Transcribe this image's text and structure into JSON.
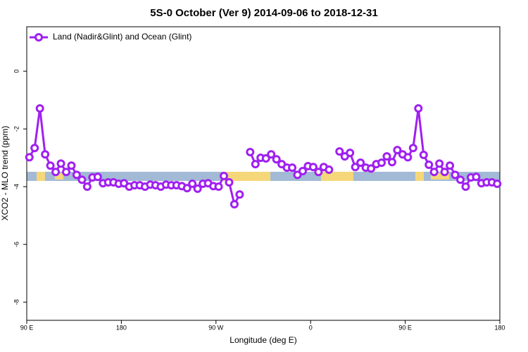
{
  "chart_data": {
    "type": "line",
    "title": "5S-0 October (Ver 9)   2014-09-06 to 2018-12-31",
    "x_label": "Longitude (deg E)",
    "y_label": "XCO2 - MLO trend (ppm)",
    "xlim": [
      90,
      540
    ],
    "ylim": [
      -8.63,
      1.54
    ],
    "xticks": [
      {
        "value": 90,
        "label": "90 E"
      },
      180,
      {
        "value": 270,
        "label": "90 W"
      },
      {
        "value": 360,
        "label": "0"
      },
      {
        "value": 450,
        "label": "90 E"
      },
      {
        "value": 540,
        "label": "180"
      }
    ],
    "yticks": [
      0,
      -2,
      -4,
      -6,
      -8
    ],
    "legend": "top-left",
    "x": [
      92.5,
      97.5,
      102.5,
      107.5,
      112.5,
      117.5,
      122.5,
      127.5,
      132.5,
      137.5,
      142.5,
      147.5,
      152.5,
      157.5,
      162.5,
      167.5,
      172.5,
      177.5,
      182.5,
      187.5,
      192.5,
      197.5,
      202.5,
      207.5,
      212.5,
      217.5,
      222.5,
      227.5,
      232.5,
      237.5,
      242.5,
      247.5,
      252.5,
      257.5,
      262.5,
      267.5,
      272.5,
      277.5,
      282.5,
      287.5,
      292.5,
      297.5,
      302.5,
      307.5,
      312.5,
      317.5,
      322.5,
      327.5,
      332.5,
      337.5,
      342.5,
      347.5,
      352.5,
      357.5,
      362.5,
      367.5,
      372.5,
      377.5,
      382.5,
      387.5,
      392.5,
      397.5,
      402.5,
      407.5,
      412.5,
      417.5,
      422.5,
      427.5,
      432.5,
      437.5,
      442.5,
      447.5,
      452.5,
      457.5,
      462.5,
      467.5,
      472.5,
      477.5,
      482.5,
      487.5,
      492.5,
      497.5,
      502.5,
      507.5,
      512.5,
      517.5,
      522.5,
      527.5,
      532.5,
      537.5
    ],
    "series": [
      {
        "name": "Land (Nadir&Glint) and Ocean (Glint)",
        "color": "#a020f0",
        "values": [
          -2.98,
          -2.66,
          -1.29,
          -2.88,
          -3.27,
          -3.49,
          -3.2,
          -3.49,
          -3.27,
          -3.59,
          -3.76,
          -4.0,
          -3.68,
          -3.66,
          -3.88,
          -3.85,
          -3.85,
          -3.9,
          -3.88,
          -4.0,
          -3.95,
          -3.95,
          -4.0,
          -3.93,
          -3.95,
          -4.0,
          -3.93,
          -3.95,
          -3.95,
          -3.98,
          -4.05,
          -3.9,
          -4.07,
          -3.9,
          -3.88,
          -3.98,
          -4.0,
          -3.63,
          -3.85,
          -4.61,
          -4.27,
          null,
          -2.8,
          -3.22,
          -3.0,
          -3.02,
          -2.88,
          -3.05,
          -3.22,
          -3.34,
          -3.34,
          -3.59,
          -3.46,
          -3.29,
          -3.32,
          -3.49,
          -3.32,
          -3.41,
          null,
          -2.78,
          -2.95,
          -2.83,
          -3.32,
          -3.17,
          -3.34,
          -3.37,
          -3.22,
          -3.17,
          -2.95,
          -3.15,
          -2.73,
          -2.88,
          -2.98,
          -2.66,
          -1.29,
          -2.9,
          -3.24,
          -3.49,
          -3.2,
          -3.49,
          -3.27,
          -3.59,
          -3.76,
          -4.0,
          -3.68,
          -3.66,
          -3.88,
          -3.85,
          -3.85,
          -3.9
        ]
      }
    ]
  }
}
